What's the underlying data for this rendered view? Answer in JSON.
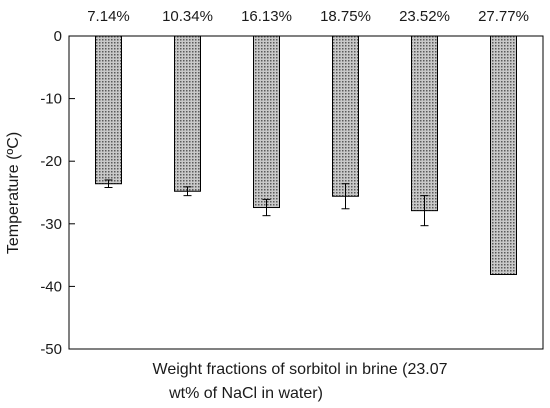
{
  "chart_data": {
    "type": "bar",
    "title": "",
    "categories": [
      "7.14%",
      "10.34%",
      "16.13%",
      "18.75%",
      "23.52%",
      "27.77%"
    ],
    "values": [
      -23.6,
      -24.8,
      -27.4,
      -25.6,
      -27.9,
      -38.1
    ],
    "error": [
      0.6,
      0.7,
      1.3,
      2.0,
      2.4,
      0
    ],
    "xlabel_lines": [
      "Weight fractions of sorbitol in brine (23.07",
      "wt% of NaCl in water)"
    ],
    "ylabel": "Temperature (ºC)",
    "ylim": [
      -50,
      0
    ],
    "yticks": [
      0,
      -10,
      -20,
      -30,
      -40,
      -50
    ],
    "ytick_labels": [
      "0",
      "-10",
      "-20",
      "-30",
      "-40",
      "-50"
    ],
    "category_axis_position": "top",
    "bar_pattern": "dotted",
    "bar_fill_color": "#a9a9a9",
    "bar_edge_color": "#000000",
    "grid": false,
    "legend": "none"
  }
}
